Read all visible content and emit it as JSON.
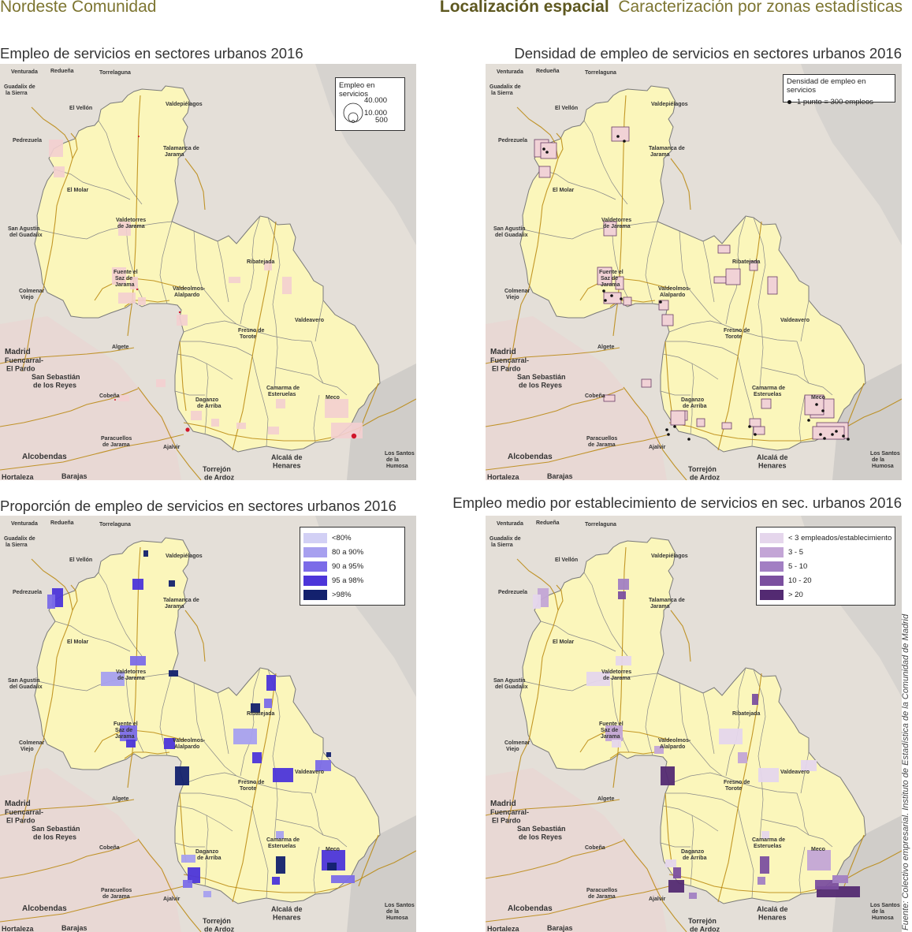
{
  "header": {
    "left": "Nordeste Comunidad",
    "right_bold": "Localización espacial",
    "right_rest": "Caracterización por zonas estadísticas"
  },
  "source": "Fuente: Colectivo empresarial. Instituto de Estadística de la Comunidad de Madrid",
  "colors": {
    "background_land": "#e4dfd8",
    "region_fill": "#fbf6bb",
    "urban_pink": "#f3cfd0",
    "road": "#b8860b",
    "boundary": "#888888",
    "water_grey": "#bdbdbd",
    "dot_red": "#d0162a"
  },
  "places": {
    "venturada": "Venturada",
    "redueña": "Redueña",
    "torrelaguna": "Torrelaguna",
    "guadalix": "Guadalix de la Sierra",
    "el_vellon": "El Vellón",
    "valdepielagos": "Valdepiélagos",
    "pedrezuela": "Pedrezuela",
    "talamanca": "Talamanca de Jarama",
    "el_molar": "El Molar",
    "valdetorres": "Valdetorres de Jarama",
    "san_agustin": "San Agustín del Guadalix",
    "ribatejada": "Ribatejada",
    "fuente_el_saz": "Fuente el Saz de Jarama",
    "valdeolmos": "Valdeolmos-Alalpardo",
    "colmenar": "Colmenar Viejo",
    "valdeavero": "Valdeavero",
    "fresno": "Fresno de Torote",
    "madrid": "Madrid",
    "algete": "Algete",
    "fuencarral": "Fuencarral-El Pardo",
    "san_sebastian": "San Sebastián de los Reyes",
    "camarma": "Camarma de Esteruelas",
    "cobena": "Cobeña",
    "daganzo": "Daganzo de Arriba",
    "meco": "Meco",
    "paracuellos": "Paracuellos de Jarama",
    "ajalvir": "Ajalvir",
    "alcobendas": "Alcobendas",
    "los_santos": "Los Santos de la Humosa",
    "torrejon": "Torrejón de Ardoz",
    "alcala": "Alcalá de Henares",
    "hortaleza": "Hortaleza",
    "barajas": "Barajas"
  },
  "panels": [
    {
      "title": "Empleo de servicios en sectores urbanos 2016",
      "legend": {
        "title": "Empleo en servicios",
        "sizes": [
          "40.000",
          "10.000",
          "500"
        ]
      }
    },
    {
      "title": "Densidad de empleo de servicios en sectores urbanos 2016",
      "legend": {
        "title": "Densidad de empleo en servicios",
        "item": "1 punto = 300 empleos"
      }
    },
    {
      "title": "Proporción de empleo de servicios en sectores urbanos 2016",
      "legend": {
        "classes": [
          {
            "label": "<80%",
            "color": "#d2d0f5"
          },
          {
            "label": "80 a 90%",
            "color": "#a7a0ef"
          },
          {
            "label": "90 a 95%",
            "color": "#7b6be8"
          },
          {
            "label": "95 a 98%",
            "color": "#4c35d9"
          },
          {
            "label": ">98%",
            "color": "#13216e"
          }
        ]
      }
    },
    {
      "title": "Empleo medio por establecimiento de servicios en sec. urbanos 2016",
      "legend": {
        "classes": [
          {
            "label": "< 3 empleados/establecimiento",
            "color": "#e5d6ec"
          },
          {
            "label": "3 - 5",
            "color": "#c3a5d6"
          },
          {
            "label": "5 - 10",
            "color": "#a27fc3"
          },
          {
            "label": "10 - 20",
            "color": "#7b4f9f"
          },
          {
            "label": "> 20",
            "color": "#532a72"
          }
        ]
      }
    }
  ]
}
